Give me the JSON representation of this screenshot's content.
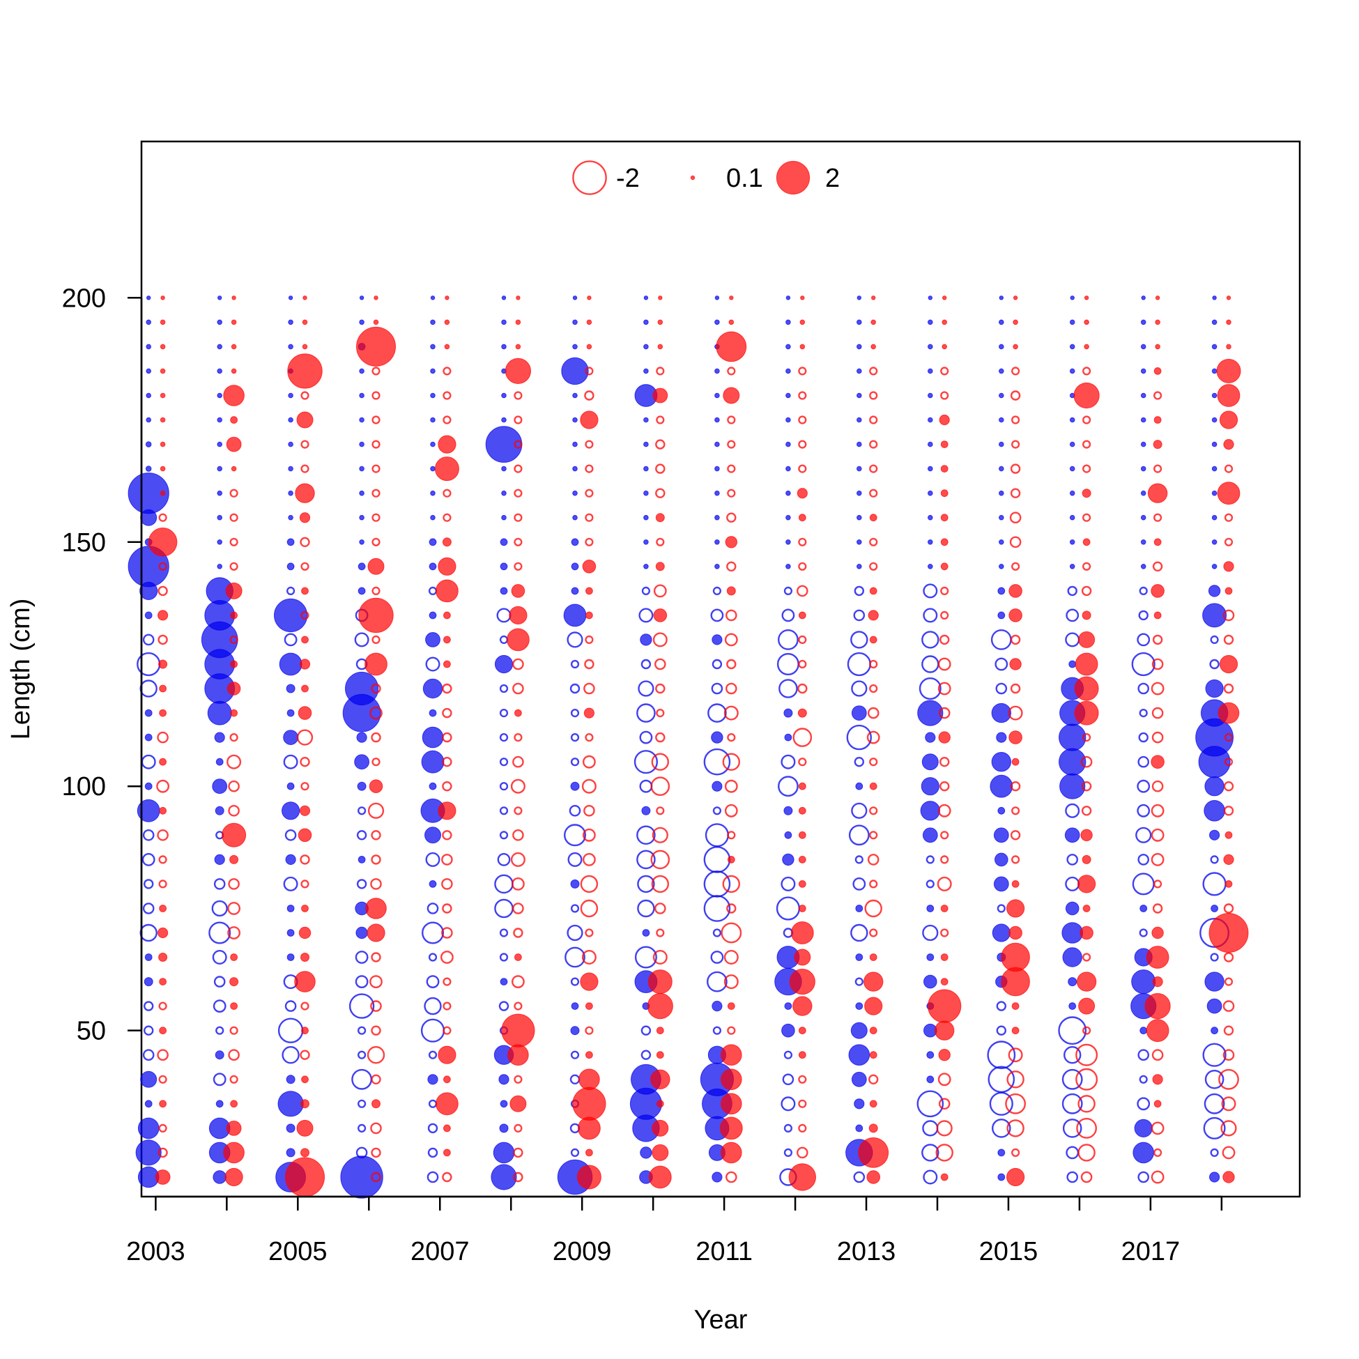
{
  "chart_data": {
    "type": "scatter",
    "subtype": "bubble-residuals",
    "title": "",
    "xlabel": "Year",
    "ylabel": "Length (cm)",
    "xlim": [
      2002.8,
      2019.1
    ],
    "ylim": [
      16,
      232
    ],
    "x_ticks": [
      2003,
      2004,
      2005,
      2006,
      2007,
      2008,
      2009,
      2010,
      2011,
      2012,
      2013,
      2014,
      2015,
      2016,
      2017,
      2018
    ],
    "x_tick_labels": [
      "2003",
      "2005",
      "2007",
      "2009",
      "2011",
      "2013",
      "2015",
      "2017"
    ],
    "x_tick_label_values": [
      2003,
      2005,
      2007,
      2009,
      2011,
      2013,
      2015,
      2017
    ],
    "y_ticks": [
      50,
      100,
      150,
      200
    ],
    "y_tick_labels": [
      "50",
      "100",
      "150",
      "200"
    ],
    "grid": false,
    "legend": {
      "placement": "top-center",
      "entries": [
        {
          "label": "-2",
          "value": -2
        },
        {
          "label": "0.1",
          "value": 0.1
        },
        {
          "label": "2",
          "value": 2
        }
      ]
    },
    "series": [
      {
        "color": "#0000ee",
        "year_offset": -0.1
      },
      {
        "color": "#ff0000",
        "year_offset": 0.1
      }
    ],
    "years": [
      2003,
      2004,
      2005,
      2006,
      2007,
      2008,
      2009,
      2010,
      2011,
      2012,
      2013,
      2014,
      2015,
      2016,
      2017,
      2018
    ],
    "length_bins": [
      20,
      25,
      30,
      35,
      40,
      45,
      50,
      55,
      60,
      65,
      70,
      75,
      80,
      85,
      90,
      95,
      100,
      105,
      110,
      115,
      120,
      125,
      130,
      135,
      140,
      145,
      150,
      155,
      160,
      165,
      170,
      175,
      180,
      185,
      190,
      195,
      200
    ],
    "residuals_blue": [
      [
        1.2,
        1.5,
        1.2,
        0.3,
        0.9,
        -0.5,
        -0.4,
        -0.4,
        0.4,
        0.3,
        -0.9,
        -0.5,
        -0.4,
        -0.6,
        -0.5,
        1.3,
        0.3,
        -0.7,
        0.3,
        0.3,
        -0.9,
        -1.3,
        -0.5,
        0.3,
        1.0,
        2.5,
        0.3,
        0.9,
        2.5,
        0.2,
        0.2,
        0.15,
        0.15,
        0.15,
        0.15,
        0.15,
        0.1
      ],
      [
        0.7,
        1.2,
        1.2,
        0.3,
        -0.6,
        0.4,
        -0.3,
        -0.6,
        -0.5,
        -0.7,
        -1.2,
        -0.8,
        -0.5,
        0.5,
        -0.3,
        0.4,
        0.8,
        0.3,
        0.5,
        1.4,
        1.8,
        1.8,
        2.2,
        1.8,
        1.6,
        0.15,
        0.15,
        0.15,
        0.15,
        0.15,
        0.15,
        0.15,
        0.15,
        0.15,
        0.15,
        0.15,
        0.1
      ],
      [
        1.8,
        0.4,
        0.4,
        1.5,
        0.4,
        -0.9,
        -1.4,
        -0.5,
        -0.7,
        0.3,
        0.3,
        0.3,
        -0.7,
        0.5,
        -0.5,
        1.0,
        0.3,
        -0.7,
        0.8,
        0.3,
        0.4,
        1.3,
        -0.6,
        2.0,
        -0.3,
        0.3,
        0.3,
        0.15,
        0.15,
        0.15,
        0.15,
        0.15,
        0.15,
        0.15,
        0.15,
        0.15,
        0.1
      ],
      [
        2.6,
        -0.5,
        -0.3,
        -0.3,
        -1.1,
        -0.3,
        -0.3,
        -1.4,
        -0.6,
        -0.6,
        0.6,
        0.7,
        -0.4,
        0.3,
        -0.4,
        -0.3,
        0.4,
        0.8,
        0.5,
        2.3,
        2.0,
        -0.5,
        -0.7,
        -0.6,
        0.3,
        0.3,
        0.15,
        0.15,
        0.15,
        0.15,
        0.15,
        0.15,
        0.15,
        0.15,
        0.3,
        0.15,
        0.1
      ],
      [
        -0.5,
        -0.4,
        -0.4,
        -0.3,
        0.5,
        -0.3,
        -1.3,
        -0.9,
        -0.6,
        -0.3,
        -1.2,
        -0.5,
        0.3,
        -0.7,
        0.9,
        1.4,
        0.3,
        1.3,
        1.2,
        0.3,
        1.1,
        -0.7,
        0.8,
        0.3,
        -0.3,
        0.3,
        0.3,
        0.15,
        0.15,
        0.15,
        0.15,
        0.15,
        0.15,
        0.15,
        0.15,
        0.15,
        0.1
      ],
      [
        1.5,
        1.2,
        0.4,
        0.3,
        0.5,
        1.1,
        -0.3,
        -0.4,
        0.3,
        -0.3,
        -0.3,
        -1.0,
        -1.0,
        -0.6,
        -0.3,
        -0.3,
        -0.3,
        -0.3,
        -0.3,
        -0.3,
        -0.3,
        1.0,
        -0.3,
        -0.7,
        0.3,
        0.3,
        0.3,
        0.15,
        0.15,
        0.15,
        2.2,
        0.15,
        0.15,
        0.15,
        0.15,
        0.15,
        0.1
      ],
      [
        2.1,
        -0.3,
        -0.4,
        -0.3,
        -0.4,
        -0.3,
        0.4,
        0.3,
        -0.3,
        -1.1,
        -0.8,
        -0.3,
        0.4,
        -0.7,
        -1.2,
        -0.5,
        0.4,
        -0.3,
        -0.3,
        -0.3,
        -0.4,
        -0.3,
        -0.8,
        1.3,
        0.3,
        0.3,
        0.3,
        0.15,
        0.15,
        0.15,
        0.15,
        0.15,
        0.15,
        1.6,
        0.15,
        0.15,
        0.1
      ],
      [
        0.7,
        0.6,
        1.6,
        1.9,
        1.8,
        -0.4,
        -0.4,
        0.3,
        1.3,
        -1.2,
        0.3,
        -0.9,
        -0.9,
        -1.0,
        -1.0,
        0.4,
        -0.6,
        -1.3,
        -0.6,
        -1.0,
        -0.8,
        -0.4,
        0.6,
        -0.7,
        -0.3,
        0.15,
        0.15,
        0.15,
        0.15,
        0.15,
        0.15,
        0.15,
        1.3,
        0.15,
        0.15,
        0.15,
        0.1
      ],
      [
        0.5,
        0.9,
        1.4,
        1.8,
        2.0,
        1.0,
        -0.3,
        0.5,
        -1.1,
        -0.6,
        -0.3,
        -1.5,
        -1.5,
        -1.5,
        -1.3,
        -0.3,
        0.5,
        -1.5,
        0.6,
        -1.0,
        -0.5,
        -0.4,
        0.5,
        -0.6,
        -0.3,
        0.15,
        0.15,
        0.15,
        0.15,
        0.15,
        0.15,
        0.15,
        0.15,
        0.15,
        0.15,
        0.15,
        0.1
      ],
      [
        -0.9,
        -0.3,
        -0.3,
        -0.7,
        -0.5,
        -0.3,
        0.7,
        0.3,
        1.6,
        1.3,
        -0.4,
        -1.3,
        -0.7,
        0.6,
        0.3,
        0.4,
        -1.1,
        -0.7,
        0.3,
        0.4,
        -1.0,
        -1.2,
        -1.1,
        -0.6,
        -0.3,
        0.15,
        0.15,
        0.15,
        0.15,
        0.15,
        0.15,
        0.15,
        0.15,
        0.15,
        0.15,
        0.15,
        0.1
      ],
      [
        -0.5,
        1.6,
        0.3,
        0.5,
        0.8,
        1.2,
        0.9,
        0.3,
        -0.3,
        0.3,
        -0.9,
        0.3,
        -0.6,
        -0.3,
        -1.1,
        -0.8,
        0.3,
        -0.4,
        -1.4,
        0.8,
        -0.8,
        -1.3,
        -0.9,
        -0.5,
        -0.4,
        0.15,
        0.15,
        0.15,
        0.15,
        0.15,
        0.15,
        0.15,
        0.15,
        0.15,
        0.15,
        0.15,
        0.1
      ],
      [
        -0.7,
        -0.9,
        -0.8,
        -1.5,
        0.3,
        0.3,
        0.7,
        0.3,
        0.7,
        0.3,
        -0.8,
        0.3,
        -0.3,
        -0.3,
        0.8,
        1.1,
        1.0,
        0.9,
        0.5,
        1.5,
        -1.2,
        -0.9,
        -0.9,
        -0.7,
        -0.7,
        0.15,
        0.15,
        0.15,
        0.15,
        0.15,
        0.15,
        0.15,
        0.15,
        0.15,
        0.15,
        0.15,
        0.1
      ],
      [
        0.3,
        0.3,
        -1.0,
        -1.3,
        -1.5,
        -1.6,
        -0.4,
        -0.4,
        0.6,
        0.4,
        1.0,
        -0.3,
        0.8,
        0.7,
        0.8,
        0.3,
        1.3,
        1.1,
        0.5,
        1.1,
        -0.5,
        -0.6,
        -1.1,
        0.3,
        0.3,
        0.15,
        0.15,
        0.15,
        0.15,
        0.15,
        0.15,
        0.15,
        0.15,
        0.15,
        0.15,
        0.15,
        0.1
      ],
      [
        -0.5,
        -0.6,
        -1.0,
        -1.1,
        -1.1,
        -0.9,
        -1.6,
        0.3,
        0.4,
        1.1,
        1.2,
        0.7,
        -0.7,
        -0.5,
        0.8,
        -0.7,
        1.5,
        1.6,
        1.6,
        1.5,
        1.3,
        0.3,
        -0.7,
        -0.6,
        -0.4,
        0.15,
        0.15,
        0.15,
        0.15,
        0.15,
        0.15,
        0.15,
        0.15,
        0.15,
        0.15,
        0.15,
        0.1
      ],
      [
        -0.5,
        1.2,
        1.0,
        -0.6,
        -0.3,
        -0.5,
        0.3,
        1.5,
        1.4,
        1.0,
        -0.3,
        0.3,
        -1.2,
        -0.5,
        -0.8,
        -0.6,
        -0.6,
        -0.5,
        -0.4,
        -0.3,
        -0.5,
        -1.3,
        -0.6,
        -0.4,
        -0.3,
        0.15,
        0.15,
        0.15,
        0.15,
        0.15,
        0.15,
        0.15,
        0.15,
        0.15,
        0.15,
        0.15,
        0.1
      ],
      [
        0.5,
        -0.3,
        -1.2,
        -1.1,
        -1.0,
        -1.3,
        0.3,
        0.8,
        1.1,
        -0.3,
        -1.7,
        0.3,
        -1.3,
        -0.3,
        0.5,
        1.2,
        1.1,
        1.9,
        2.3,
        1.6,
        1.0,
        -0.4,
        -0.3,
        1.4,
        0.6,
        0.15,
        0.15,
        0.15,
        0.15,
        0.15,
        0.15,
        0.15,
        0.15,
        0.15,
        0.15,
        0.15,
        0.1
      ]
    ],
    "residuals_red": [
      [
        0.8,
        -0.4,
        -0.3,
        0.3,
        -0.3,
        -0.5,
        0.3,
        -0.3,
        0.3,
        0.4,
        0.5,
        0.3,
        -0.3,
        -0.3,
        -0.5,
        0.3,
        -0.6,
        0.3,
        -0.5,
        0.3,
        0.3,
        0.4,
        -0.4,
        0.5,
        -0.4,
        -0.3,
        1.7,
        -0.3,
        0.15,
        0.15,
        0.15,
        0.15,
        0.15,
        0.15,
        0.15,
        0.15,
        0.1
      ],
      [
        1.0,
        1.2,
        0.8,
        0.3,
        -0.3,
        -0.5,
        -0.3,
        0.3,
        0.4,
        0.3,
        -0.6,
        -0.6,
        -0.5,
        0.4,
        1.4,
        -0.5,
        -0.5,
        -0.7,
        -0.3,
        0.3,
        0.7,
        0.3,
        -0.3,
        0.3,
        0.9,
        -0.3,
        -0.3,
        -0.3,
        -0.3,
        0.15,
        0.8,
        0.3,
        1.2,
        0.15,
        0.15,
        0.15,
        0.1
      ],
      [
        2.4,
        0.4,
        0.9,
        0.4,
        0.3,
        -0.4,
        0.3,
        -0.3,
        1.2,
        0.4,
        0.6,
        0.3,
        -0.3,
        -0.4,
        0.7,
        0.5,
        -0.3,
        -0.4,
        -0.8,
        0.7,
        0.3,
        0.5,
        0.3,
        -0.3,
        0.3,
        -0.3,
        -0.4,
        0.5,
        1.1,
        -0.3,
        -0.3,
        0.9,
        -0.3,
        2.1,
        0.15,
        0.15,
        0.1
      ],
      [
        -0.4,
        -0.4,
        -0.5,
        0.4,
        -0.4,
        -0.9,
        -0.4,
        -0.5,
        -0.6,
        -0.4,
        1.0,
        1.2,
        -0.5,
        -0.4,
        -0.4,
        -0.8,
        0.7,
        -0.3,
        -0.4,
        -0.6,
        -0.4,
        1.3,
        -0.3,
        2.1,
        -0.3,
        0.9,
        -0.3,
        -0.3,
        -0.3,
        -0.3,
        -0.3,
        -0.3,
        -0.3,
        -0.3,
        2.4,
        0.15,
        0.1
      ],
      [
        -0.4,
        0.3,
        0.3,
        1.3,
        0.3,
        1.0,
        -0.3,
        -0.3,
        -0.3,
        -0.6,
        -0.5,
        -0.4,
        -0.5,
        -0.5,
        -0.4,
        1.0,
        -0.4,
        -0.4,
        -0.4,
        -0.4,
        -0.4,
        0.3,
        0.3,
        0.3,
        1.3,
        1.0,
        0.4,
        -0.3,
        -0.3,
        1.4,
        1.0,
        -0.3,
        -0.3,
        -0.3,
        0.15,
        0.15,
        0.1
      ],
      [
        -0.4,
        -0.4,
        -0.3,
        0.9,
        -0.3,
        1.2,
        2.0,
        -0.3,
        -0.6,
        0.3,
        -0.4,
        -0.5,
        -0.6,
        -0.7,
        -0.5,
        -0.3,
        -0.7,
        -0.5,
        -0.3,
        0.3,
        -0.5,
        -0.5,
        1.3,
        1.0,
        0.7,
        -0.3,
        -0.3,
        -0.3,
        -0.3,
        -0.3,
        -0.3,
        -0.3,
        -0.3,
        1.5,
        0.15,
        0.15,
        0.1
      ],
      [
        1.4,
        0.3,
        1.3,
        2.0,
        1.2,
        0.3,
        -0.3,
        0.3,
        1.0,
        -0.7,
        -0.3,
        -0.9,
        -0.9,
        -0.6,
        -0.6,
        -0.5,
        -0.7,
        -0.6,
        -0.3,
        0.5,
        -0.5,
        -0.4,
        -0.3,
        0.3,
        0.3,
        0.7,
        -0.3,
        -0.3,
        -0.3,
        -0.3,
        -0.3,
        1.0,
        -0.4,
        -0.3,
        0.15,
        0.15,
        0.1
      ],
      [
        1.3,
        0.9,
        0.9,
        0.3,
        1.1,
        0.3,
        0.3,
        1.5,
        1.4,
        -0.7,
        -0.3,
        -0.5,
        -0.9,
        -1.0,
        -0.8,
        -0.3,
        -1.0,
        -0.9,
        -0.4,
        -0.3,
        -0.4,
        -0.5,
        -0.7,
        0.7,
        -0.6,
        0.4,
        -0.3,
        0.4,
        -0.4,
        -0.4,
        -0.4,
        -0.3,
        0.8,
        -0.3,
        0.15,
        0.15,
        0.1
      ],
      [
        -0.5,
        1.2,
        1.3,
        1.2,
        1.2,
        1.2,
        -0.3,
        0.3,
        -0.7,
        -0.7,
        -1.1,
        -0.4,
        -0.9,
        0.3,
        -0.3,
        -0.6,
        -0.6,
        -0.9,
        -0.3,
        -0.7,
        -0.5,
        -0.4,
        -0.6,
        -0.5,
        0.4,
        -0.4,
        0.6,
        -0.4,
        -0.3,
        -0.3,
        -0.3,
        -0.3,
        0.9,
        -0.3,
        1.8,
        0.15,
        0.1
      ],
      [
        1.6,
        -0.5,
        -0.3,
        -0.3,
        -0.3,
        0.3,
        0.3,
        1.1,
        1.5,
        0.9,
        1.3,
        0.3,
        0.3,
        0.3,
        0.3,
        0.3,
        0.3,
        -0.3,
        -1.0,
        0.4,
        -0.4,
        -0.3,
        -0.3,
        0.3,
        -0.5,
        -0.3,
        -0.3,
        0.3,
        0.5,
        -0.3,
        -0.3,
        -0.3,
        -0.3,
        -0.3,
        0.15,
        0.15,
        0.1
      ],
      [
        0.7,
        1.8,
        0.4,
        0.3,
        -0.4,
        0.3,
        0.3,
        1.0,
        1.1,
        0.3,
        -0.3,
        -0.9,
        -0.3,
        -0.5,
        -0.3,
        -0.3,
        0.3,
        -0.3,
        -0.6,
        -0.5,
        -0.3,
        -0.3,
        0.3,
        0.5,
        0.3,
        -0.3,
        -0.3,
        0.3,
        -0.3,
        -0.3,
        -0.3,
        -0.3,
        -0.3,
        -0.3,
        0.15,
        0.15,
        0.1
      ],
      [
        0.3,
        -0.9,
        -0.8,
        -0.5,
        -0.6,
        0.6,
        1.1,
        2.0,
        0.3,
        0.3,
        -0.3,
        0.3,
        -0.7,
        -0.3,
        -0.3,
        -0.6,
        -0.4,
        -0.4,
        0.6,
        -0.5,
        -0.6,
        -0.6,
        -0.4,
        -0.3,
        -0.3,
        0.3,
        0.3,
        0.3,
        0.3,
        0.3,
        0.3,
        0.5,
        -0.3,
        -0.3,
        0.15,
        0.15,
        0.1
      ],
      [
        1.0,
        -0.3,
        -0.9,
        -1.1,
        -0.9,
        -0.7,
        0.3,
        0.3,
        1.7,
        1.7,
        0.7,
        1.0,
        0.3,
        -0.3,
        -0.4,
        -0.3,
        -0.4,
        0.3,
        0.7,
        -0.7,
        -0.4,
        0.6,
        -0.4,
        0.7,
        0.7,
        -0.3,
        -0.5,
        -0.5,
        -0.4,
        -0.4,
        -0.3,
        -0.3,
        -0.4,
        -0.3,
        0.15,
        0.15,
        0.1
      ],
      [
        -0.5,
        -0.9,
        -1.1,
        -0.9,
        -1.2,
        -1.2,
        -0.3,
        0.9,
        1.1,
        -0.3,
        0.7,
        0.3,
        1.0,
        0.4,
        0.6,
        -0.4,
        -0.4,
        -0.5,
        -0.3,
        1.4,
        1.4,
        1.3,
        0.9,
        0.4,
        -0.4,
        -0.3,
        0.3,
        -0.3,
        0.4,
        -0.3,
        -0.3,
        -0.3,
        1.5,
        -0.3,
        0.15,
        0.15,
        0.1
      ],
      [
        -0.6,
        -0.3,
        -0.6,
        0.3,
        0.5,
        -0.5,
        1.3,
        1.5,
        0.5,
        1.3,
        0.6,
        -0.4,
        -0.3,
        -0.6,
        -0.6,
        -0.6,
        -0.5,
        0.7,
        -0.5,
        -0.5,
        -0.6,
        -0.5,
        -0.4,
        0.3,
        0.7,
        -0.4,
        0.3,
        -0.3,
        1.1,
        -0.3,
        0.4,
        0.3,
        -0.3,
        0.3,
        0.15,
        0.15,
        0.1
      ],
      [
        0.6,
        -0.6,
        -0.8,
        -0.7,
        -1.1,
        -0.5,
        -0.4,
        -0.5,
        -0.3,
        -0.4,
        2.4,
        -0.4,
        0.3,
        0.5,
        0.3,
        -0.4,
        -0.4,
        -0.3,
        -0.3,
        1.2,
        -0.4,
        1.0,
        -0.4,
        -0.5,
        0.3,
        0.5,
        -0.3,
        -0.3,
        1.3,
        -0.3,
        0.5,
        1.0,
        1.3,
        1.4,
        0.15,
        0.15,
        0.1
      ]
    ]
  }
}
